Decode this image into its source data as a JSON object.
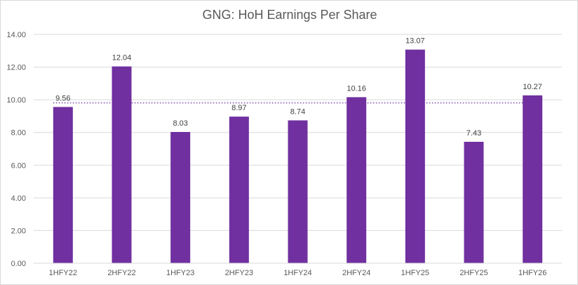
{
  "chart_data": {
    "type": "bar",
    "title": "GNG: HoH Earnings Per Share",
    "xlabel": "",
    "ylabel": "",
    "categories": [
      "1HFY22",
      "2HFY22",
      "1HFY23",
      "2HFY23",
      "1HFY24",
      "2HFY24",
      "1HFY25",
      "2HFY25",
      "1HFY26"
    ],
    "values": [
      9.56,
      12.04,
      8.03,
      8.97,
      8.74,
      10.16,
      13.07,
      7.43,
      10.27
    ],
    "data_labels": [
      "9.56",
      "12.04",
      "8.03",
      "8.97",
      "8.74",
      "10.16",
      "13.07",
      "7.43",
      "10.27"
    ],
    "ylim": [
      0,
      14
    ],
    "yticks": [
      0,
      2,
      4,
      6,
      8,
      10,
      12,
      14
    ],
    "ytick_labels": [
      "0.00",
      "2.00",
      "4.00",
      "6.00",
      "8.00",
      "10.00",
      "12.00",
      "14.00"
    ],
    "reference_line": {
      "value": 9.81,
      "style": "dotted"
    },
    "grid": true,
    "legend": "none",
    "colors": {
      "bar": "#7030a0",
      "reference_line": "#7030a0",
      "grid": "#d9d9d9",
      "text": "#595959"
    }
  }
}
